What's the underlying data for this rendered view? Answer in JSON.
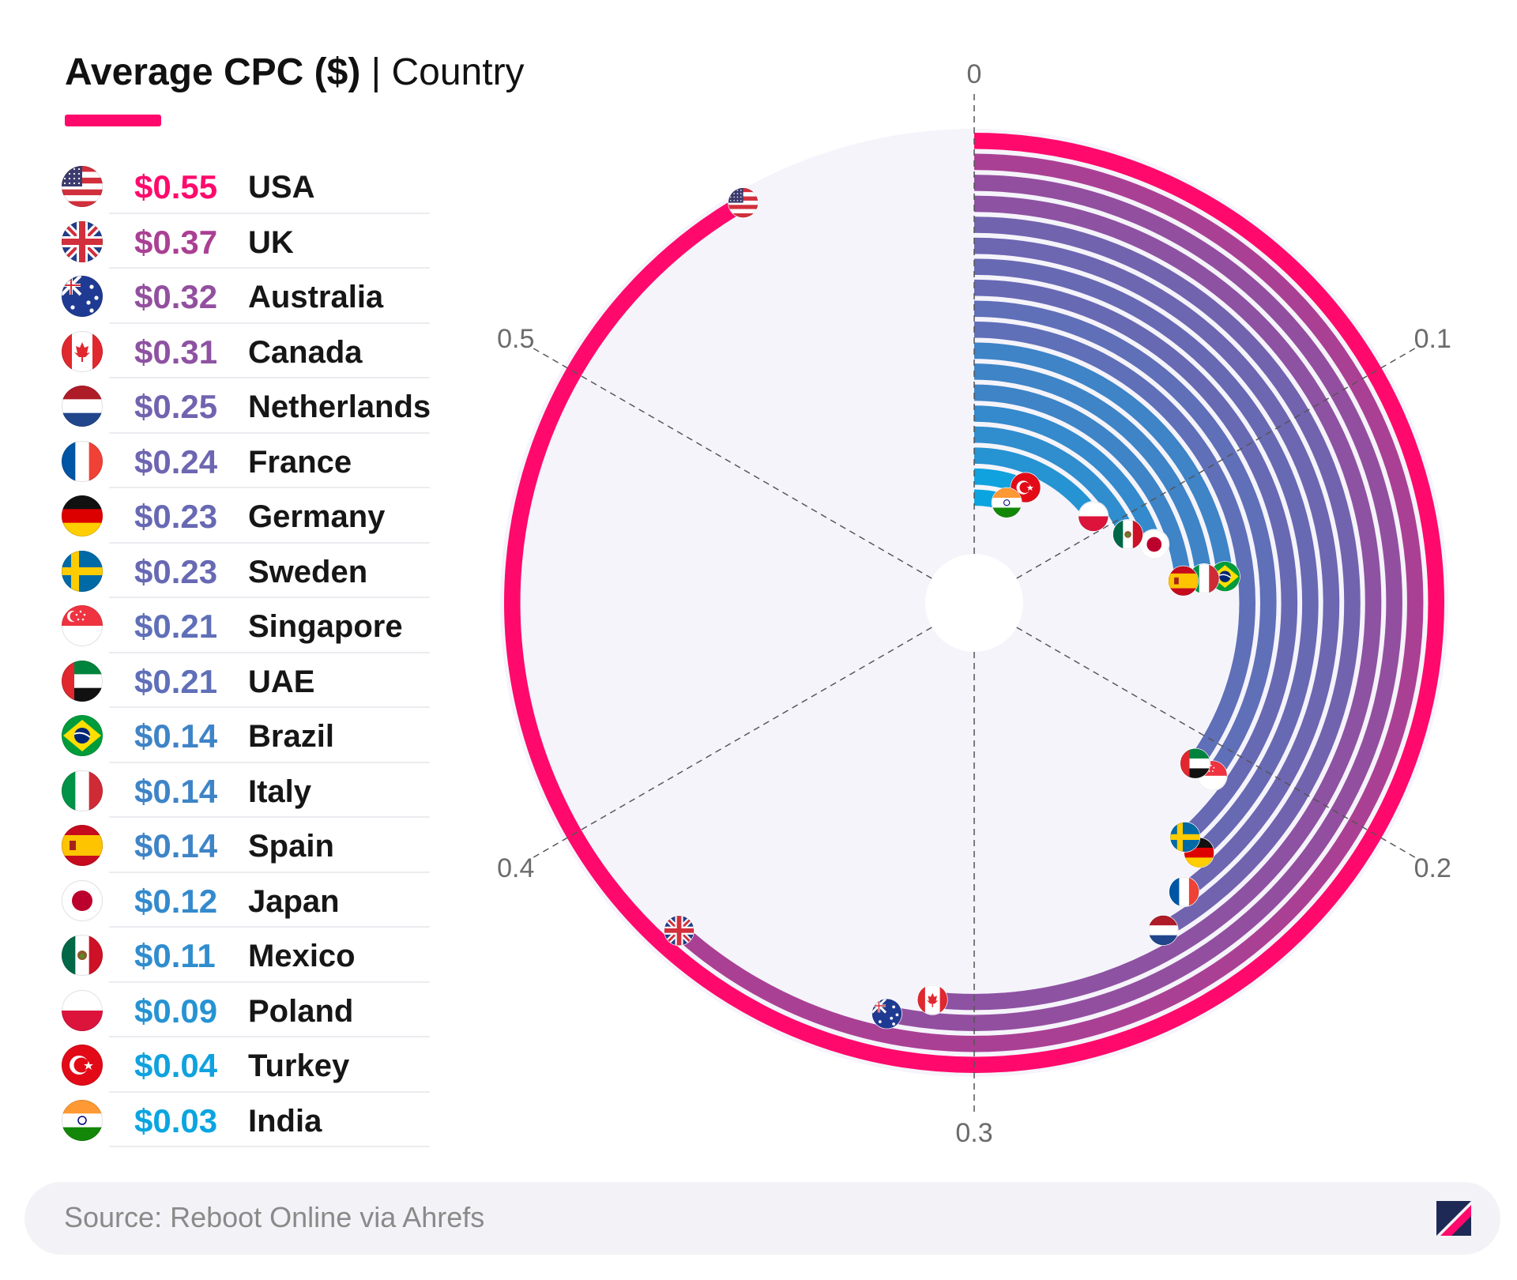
{
  "title": {
    "bold": "Average CPC ($)",
    "rest": " | Country"
  },
  "footer": {
    "source": "Source: Reboot Online via Ahrefs"
  },
  "colors": {
    "accent": "#ff0a6c",
    "background_disc": "#f5f4fb",
    "high": "#ff0a6c",
    "low": "#0aa5e0"
  },
  "chart_data": {
    "type": "radial-bar",
    "title": "Average CPC ($) | Country",
    "angular_ticks": [
      "0",
      "0.1",
      "0.2",
      "0.3",
      "0.4",
      "0.5"
    ],
    "range": [
      0,
      0.6
    ],
    "categories": [
      "USA",
      "UK",
      "Australia",
      "Canada",
      "Netherlands",
      "France",
      "Germany",
      "Sweden",
      "Singapore",
      "UAE",
      "Brazil",
      "Italy",
      "Spain",
      "Japan",
      "Mexico",
      "Poland",
      "Turkey",
      "India"
    ],
    "values": [
      0.55,
      0.37,
      0.32,
      0.31,
      0.25,
      0.24,
      0.23,
      0.23,
      0.21,
      0.21,
      0.14,
      0.14,
      0.14,
      0.12,
      0.11,
      0.09,
      0.04,
      0.03
    ],
    "value_labels": [
      "$0.55",
      "$0.37",
      "$0.32",
      "$0.31",
      "$0.25",
      "$0.24",
      "$0.23",
      "$0.23",
      "$0.21",
      "$0.21",
      "$0.14",
      "$0.14",
      "$0.14",
      "$0.12",
      "$0.11",
      "$0.09",
      "$0.04",
      "$0.03"
    ],
    "flags": [
      "usa-flag-icon",
      "uk-flag-icon",
      "australia-flag-icon",
      "canada-flag-icon",
      "netherlands-flag-icon",
      "france-flag-icon",
      "germany-flag-icon",
      "sweden-flag-icon",
      "singapore-flag-icon",
      "uae-flag-icon",
      "brazil-flag-icon",
      "italy-flag-icon",
      "spain-flag-icon",
      "japan-flag-icon",
      "mexico-flag-icon",
      "poland-flag-icon",
      "turkey-flag-icon",
      "india-flag-icon"
    ],
    "grid": true
  }
}
